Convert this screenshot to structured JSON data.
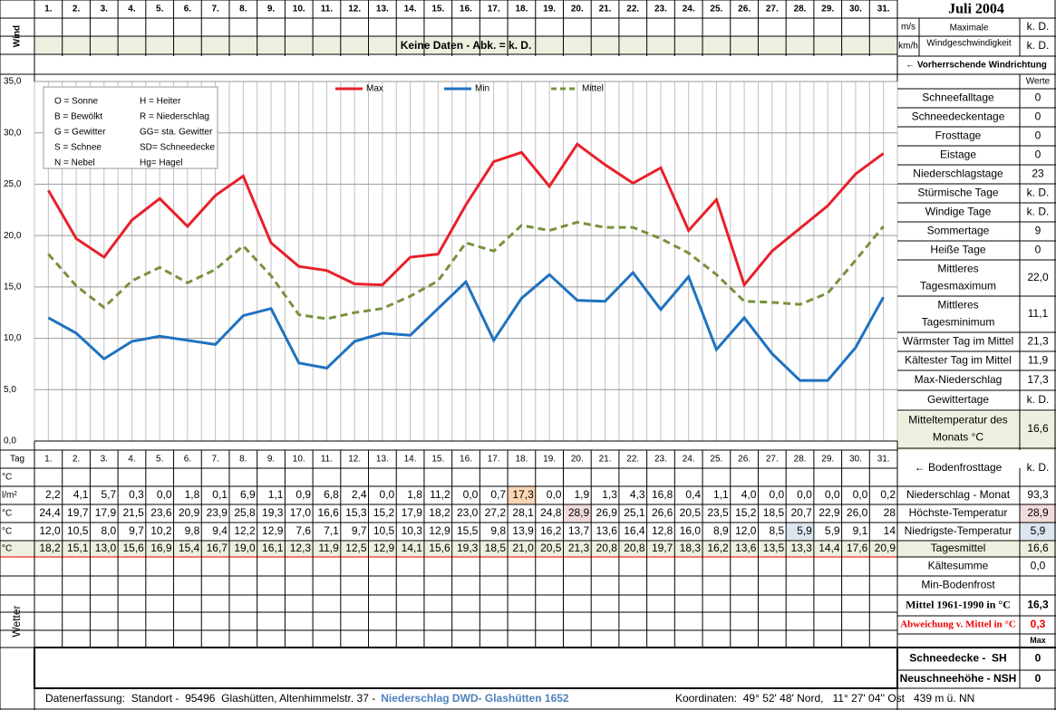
{
  "header": {
    "title": "Juli 2004",
    "wind_label": "Wind",
    "wind_units": [
      "m/s",
      "km/h"
    ],
    "wind_max_label": [
      "Maximale",
      "Windgeschwindigkeit"
    ],
    "wind_values": [
      "k. D.",
      "k. D."
    ],
    "no_data": "Keine Daten - Abk. = k. D.",
    "wind_direction": "← Vorherrschende Windrichtung",
    "values_header": "Werte"
  },
  "chart_data": {
    "type": "line",
    "categories": [
      "1.",
      "2.",
      "3.",
      "4.",
      "5.",
      "6.",
      "7.",
      "8.",
      "9.",
      "10.",
      "11.",
      "12.",
      "13.",
      "14.",
      "15.",
      "16.",
      "17.",
      "18.",
      "19.",
      "20.",
      "21.",
      "22.",
      "23.",
      "24.",
      "25.",
      "26.",
      "27.",
      "28.",
      "29.",
      "30.",
      "31."
    ],
    "series": [
      {
        "name": "Max",
        "color": "#e8202a",
        "dash": false,
        "values": [
          24.4,
          19.7,
          17.9,
          21.5,
          23.6,
          20.9,
          23.9,
          25.8,
          19.3,
          17.0,
          16.6,
          15.3,
          15.2,
          17.9,
          18.2,
          23.0,
          27.2,
          28.1,
          24.8,
          28.9,
          26.9,
          25.1,
          26.6,
          20.5,
          23.5,
          15.2,
          18.5,
          20.7,
          22.9,
          26.0,
          28
        ],
        "value_labels": [
          "24,4",
          "19,7",
          "17,9",
          "21,5",
          "23,6",
          "20,9",
          "23,9",
          "25,8",
          "19,3",
          "17,0",
          "16,6",
          "15,3",
          "15,2",
          "17,9",
          "18,2",
          "23,0",
          "27,2",
          "28,1",
          "24,8",
          "28,9",
          "26,9",
          "25,1",
          "26,6",
          "20,5",
          "23,5",
          "15,2",
          "18,5",
          "20,7",
          "22,9",
          "26,0",
          "28"
        ]
      },
      {
        "name": "Min",
        "color": "#1f72c0",
        "dash": false,
        "values": [
          12.0,
          10.5,
          8.0,
          9.7,
          10.2,
          9.8,
          9.4,
          12.2,
          12.9,
          7.6,
          7.1,
          9.7,
          10.5,
          10.3,
          12.9,
          15.5,
          9.8,
          13.9,
          16.2,
          13.7,
          13.6,
          16.4,
          12.8,
          16.0,
          8.9,
          12.0,
          8.5,
          5.9,
          5.9,
          9.1,
          14
        ],
        "value_labels": [
          "12,0",
          "10,5",
          "8,0",
          "9,7",
          "10,2",
          "9,8",
          "9,4",
          "12,2",
          "12,9",
          "7,6",
          "7,1",
          "9,7",
          "10,5",
          "10,3",
          "12,9",
          "15,5",
          "9,8",
          "13,9",
          "16,2",
          "13,7",
          "13,6",
          "16,4",
          "12,8",
          "16,0",
          "8,9",
          "12,0",
          "8,5",
          "5,9",
          "5,9",
          "9,1",
          "14"
        ]
      },
      {
        "name": "Mittel",
        "color": "#77923c",
        "dash": true,
        "values": [
          18.2,
          15.1,
          13.0,
          15.6,
          16.9,
          15.4,
          16.7,
          19.0,
          16.1,
          12.3,
          11.9,
          12.5,
          12.9,
          14.1,
          15.6,
          19.3,
          18.5,
          21.0,
          20.5,
          21.3,
          20.8,
          20.8,
          19.7,
          18.3,
          16.2,
          13.6,
          13.5,
          13.3,
          14.4,
          17.6,
          20.9
        ],
        "value_labels": [
          "18,2",
          "15,1",
          "13,0",
          "15,6",
          "16,9",
          "15,4",
          "16,7",
          "19,0",
          "16,1",
          "12,3",
          "11,9",
          "12,5",
          "12,9",
          "14,1",
          "15,6",
          "19,3",
          "18,5",
          "21,0",
          "20,5",
          "21,3",
          "20,8",
          "20,8",
          "19,7",
          "18,3",
          "16,2",
          "13,6",
          "13,5",
          "13,3",
          "14,4",
          "17,6",
          "20,9"
        ]
      }
    ],
    "ylim": [
      0,
      35
    ],
    "yticks": [
      {
        "value": 0,
        "label": "0,0"
      },
      {
        "value": 5,
        "label": "5,0"
      },
      {
        "value": 10,
        "label": "10,0"
      },
      {
        "value": 15,
        "label": "15,0"
      },
      {
        "value": 20,
        "label": "20,0"
      },
      {
        "value": 25,
        "label": "25,0"
      },
      {
        "value": 30,
        "label": "30,0"
      },
      {
        "value": 35,
        "label": "35,0"
      }
    ],
    "grid": true,
    "abbreviations": [
      [
        "O = Sonne",
        "H = Heiter"
      ],
      [
        "B = Bewölkt",
        "R = Niederschlag"
      ],
      [
        "G = Gewitter",
        "GG= sta. Gewitter"
      ],
      [
        "S = Schnee",
        "SD= Schneedecke"
      ],
      [
        "N = Nebel",
        "Hg= Hagel"
      ]
    ]
  },
  "stats": [
    {
      "label": [
        "Schneefalltage"
      ],
      "value": "0"
    },
    {
      "label": [
        "Schneedeckentage"
      ],
      "value": "0"
    },
    {
      "label": [
        "Frosttage"
      ],
      "value": "0"
    },
    {
      "label": [
        "Eistage"
      ],
      "value": "0"
    },
    {
      "label": [
        "Niederschlagstage"
      ],
      "value": "23"
    },
    {
      "label": [
        "Stürmische Tage"
      ],
      "value": "k. D."
    },
    {
      "label": [
        "Windige Tage"
      ],
      "value": "k. D."
    },
    {
      "label": [
        "Sommertage"
      ],
      "value": "9"
    },
    {
      "label": [
        "Heiße Tage"
      ],
      "value": "0"
    },
    {
      "label": [
        "Mittleres",
        "Tagesmaximum"
      ],
      "value": "22,0"
    },
    {
      "label": [
        "Mittleres",
        "Tagesminimum"
      ],
      "value": "11,1"
    },
    {
      "label": [
        "Wärmster Tag im Mittel"
      ],
      "value": "21,3"
    },
    {
      "label": [
        "Kältester Tag im Mittel"
      ],
      "value": "11,9"
    },
    {
      "label": [
        "Max-Niederschlag"
      ],
      "value": "17,3"
    },
    {
      "label": [
        "Gewittertage"
      ],
      "value": "k. D."
    },
    {
      "label": [
        "Mitteltemperatur des",
        "Monats °C"
      ],
      "value": "16,6"
    }
  ],
  "table": {
    "day_label": "Tag",
    "units": [
      "°C",
      "l/m²",
      "°C",
      "°C",
      "°C"
    ],
    "precipitation": {
      "values": [
        2.2,
        4.1,
        5.7,
        0.3,
        0.0,
        1.8,
        0.1,
        6.9,
        1.1,
        0.9,
        6.8,
        2.4,
        0.0,
        1.8,
        11.2,
        0.0,
        0.7,
        17.3,
        0.0,
        1.9,
        1.3,
        4.3,
        16.8,
        0.4,
        1.1,
        4.0,
        0.0,
        0.0,
        0.0,
        0.0,
        0.2
      ],
      "value_labels": [
        "2,2",
        "4,1",
        "5,7",
        "0,3",
        "0,0",
        "1,8",
        "0,1",
        "6,9",
        "1,1",
        "0,9",
        "6,8",
        "2,4",
        "0,0",
        "1,8",
        "11,2",
        "0,0",
        "0,7",
        "17,3",
        "0,0",
        "1,9",
        "1,3",
        "4,3",
        "16,8",
        "0,4",
        "1,1",
        "4,0",
        "0,0",
        "0,0",
        "0,0",
        "0,0",
        "0,2"
      ]
    },
    "weather_label": "Wetter"
  },
  "summary": [
    {
      "label": "← Bodenfrosttage",
      "value": "k. D."
    },
    {
      "label": "Niederschlag - Monat",
      "value": "93,3"
    },
    {
      "label": "Höchste-Temperatur",
      "value": "28,9"
    },
    {
      "label": "Niedrigste-Temperatur",
      "value": "5,9"
    },
    {
      "label": "Tagesmittel",
      "value": "16,6"
    },
    {
      "label": "Kältesumme",
      "value": "0,0"
    },
    {
      "label": "Min-Bodenfrost"
    },
    {
      "label": "Mittel 1961-1990 in °C",
      "value": "16,3"
    },
    {
      "label": "Abweichung v. Mittel in °C",
      "value": "0,3"
    },
    {
      "value": "Max"
    },
    {
      "label": "Schneedecke -  SH",
      "value": "0"
    },
    {
      "label": "Neuschneehöhe - NSH",
      "value": "0"
    }
  ],
  "footer": {
    "left": "Datenerfassung:  Standort -  95496  Glashütten, Altenhimmelstr. 37 -",
    "source": "Niederschlag DWD- Glashütten 1652",
    "right": "Koordinaten:  49° 52' 48' Nord,   11° 27' 04'' Ost   439 m ü. NN"
  }
}
